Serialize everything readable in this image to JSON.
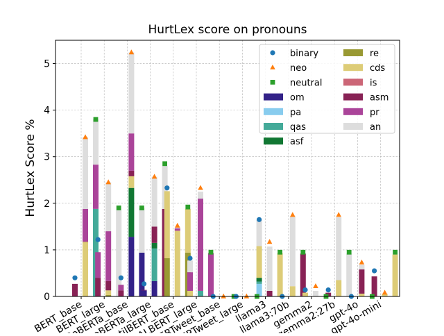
{
  "chart_data": {
    "type": "bar",
    "title": "HurtLex score on pronouns",
    "xlabel": "",
    "ylabel": "HurtLex Score %",
    "ylim": [
      0,
      5.5
    ],
    "yticks": [
      0,
      1,
      2,
      3,
      4,
      5
    ],
    "grid": true,
    "legend_placement": "top-right",
    "models": [
      "BERT_base",
      "BERT_large",
      "RoBERTa_base",
      "RoBERTa_large",
      "DistilBERT_base",
      "ALBERT_large",
      "BERTweet_base",
      "BERTweet_large",
      "llama3",
      "llama3:70b",
      "gemma2",
      "gemma2:27b",
      "gpt-4o",
      "gpt-4o-mini"
    ],
    "tick_labels": [
      "BERT_base",
      "BERT_large",
      "RoBERTa_base",
      "RoBERTa_large",
      "DistilBERT_base",
      "ALBERT_large",
      "BERTweet_base",
      "BERTweet_large",
      "llama3",
      "llama3:70b",
      "gemma2",
      "gemma2:27b",
      "gpt-4o",
      "gpt-4o-mini"
    ],
    "group_order": [
      "binary",
      "neo",
      "neutral"
    ],
    "markers": [
      {
        "name": "binary",
        "shape": "circle",
        "color": "#1f77b4"
      },
      {
        "name": "neo",
        "shape": "triangle",
        "color": "#ff7f0e"
      },
      {
        "name": "neutral",
        "shape": "square",
        "color": "#2ca02c"
      }
    ],
    "categories": [
      {
        "name": "om",
        "color": "#332288"
      },
      {
        "name": "pa",
        "color": "#88ccee"
      },
      {
        "name": "qas",
        "color": "#44aa99"
      },
      {
        "name": "asf",
        "color": "#117733"
      },
      {
        "name": "re",
        "color": "#999933"
      },
      {
        "name": "cds",
        "color": "#ddcc77"
      },
      {
        "name": "is",
        "color": "#cc6677"
      },
      {
        "name": "asm",
        "color": "#882255"
      },
      {
        "name": "pr",
        "color": "#aa4499"
      },
      {
        "name": "an",
        "color": "#dddddd"
      }
    ],
    "series": [
      {
        "model": "BERT_base",
        "group": "binary",
        "total": 0.4,
        "segments": {
          "asm": 0.27
        }
      },
      {
        "model": "BERT_base",
        "group": "neo",
        "total": 3.42,
        "segments": {
          "cds": 1.17,
          "asm": 0.01,
          "pr": 0.7,
          "an": 1.54
        }
      },
      {
        "model": "BERT_base",
        "group": "neutral",
        "total": 3.8,
        "segments": {
          "qas": 1.88,
          "pr": 0.95,
          "an": 0.97
        }
      },
      {
        "model": "BERT_large",
        "group": "binary",
        "total": 1.22,
        "segments": {
          "asm": 0.4,
          "pr": 0.55
        }
      },
      {
        "model": "BERT_large",
        "group": "neo",
        "total": 2.45,
        "segments": {
          "re": 0.03,
          "cds": 0.1,
          "asm": 0.2,
          "pr": 1.07,
          "an": 1.05
        }
      },
      {
        "model": "BERT_large",
        "group": "neutral",
        "total": 1.9,
        "segments": {
          "an": 1.85
        }
      },
      {
        "model": "RoBERTa_base",
        "group": "binary",
        "total": 0.4,
        "segments": {
          "asm": 0.13,
          "pr": 0.12
        }
      },
      {
        "model": "RoBERTa_base",
        "group": "neo",
        "total": 5.24,
        "segments": {
          "om": 1.28,
          "asf": 1.05,
          "cds": 0.25,
          "asm": 0.12,
          "pr": 0.8,
          "an": 1.74
        }
      },
      {
        "model": "RoBERTa_base",
        "group": "neutral",
        "total": 1.9,
        "segments": {
          "om": 0.94,
          "an": 0.96
        }
      },
      {
        "model": "RoBERTa_large",
        "group": "binary",
        "total": 0.27,
        "segments": {
          "om": 0.13,
          "asm": 0.01
        }
      },
      {
        "model": "RoBERTa_large",
        "group": "neo",
        "total": 2.57,
        "segments": {
          "om": 0.33,
          "qas": 0.7,
          "asf": 0.12,
          "asm": 0.35,
          "an": 1.07
        }
      },
      {
        "model": "RoBERTa_large",
        "group": "neutral",
        "total": 2.85,
        "segments": {
          "asm": 1.88,
          "an": 0.92
        }
      },
      {
        "model": "DistilBERT_base",
        "group": "binary",
        "total": 2.33,
        "segments": {
          "re": 0.82,
          "cds": 1.44
        }
      },
      {
        "model": "DistilBERT_base",
        "group": "neo",
        "total": 1.52,
        "segments": {
          "re": 0.01,
          "cds": 1.4,
          "pr": 0.05,
          "an": 0.02
        }
      },
      {
        "model": "DistilBERT_base",
        "group": "neutral",
        "total": 1.92,
        "segments": {
          "re": 0.94,
          "cds": 0.94
        }
      },
      {
        "model": "ALBERT_large",
        "group": "binary",
        "total": 0.82,
        "segments": {
          "cds": 0.12,
          "pr": 0.4,
          "an": 0.25
        }
      },
      {
        "model": "ALBERT_large",
        "group": "neo",
        "total": 2.33,
        "segments": {
          "qas": 0.12,
          "pr": 1.98,
          "an": 0.15
        }
      },
      {
        "model": "ALBERT_large",
        "group": "neutral",
        "total": 0.95,
        "segments": {
          "pr": 0.93
        }
      },
      {
        "model": "BERTweet_base",
        "group": "binary",
        "total": 0.0,
        "segments": {}
      },
      {
        "model": "BERTweet_base",
        "group": "neo",
        "total": 0.0,
        "segments": {}
      },
      {
        "model": "BERTweet_base",
        "group": "neutral",
        "total": 0.0,
        "segments": {}
      },
      {
        "model": "BERTweet_large",
        "group": "binary",
        "total": 0.0,
        "segments": {}
      },
      {
        "model": "BERTweet_large",
        "group": "neo",
        "total": 0.0,
        "segments": {}
      },
      {
        "model": "BERTweet_large",
        "group": "neutral",
        "total": 0.0,
        "segments": {}
      },
      {
        "model": "llama3",
        "group": "binary",
        "total": 1.65,
        "segments": {
          "pa": 0.27,
          "qas": 0.05,
          "asf": 0.08,
          "cds": 0.68,
          "an": 0.56
        }
      },
      {
        "model": "llama3",
        "group": "neo",
        "total": 1.17,
        "segments": {
          "asm": 0.12,
          "an": 0.95
        }
      },
      {
        "model": "llama3",
        "group": "neutral",
        "total": 0.95,
        "segments": {
          "cds": 0.93
        }
      },
      {
        "model": "llama3:70b",
        "group": "binary",
        "total": 0.0,
        "segments": {}
      },
      {
        "model": "llama3:70b",
        "group": "neo",
        "total": 1.75,
        "segments": {
          "cds": 0.22,
          "an": 1.5
        }
      },
      {
        "model": "llama3:70b",
        "group": "neutral",
        "total": 0.95,
        "segments": {
          "asm": 0.92
        }
      },
      {
        "model": "gemma2",
        "group": "binary",
        "total": 0.14,
        "segments": {
          "cds": 0.08
        }
      },
      {
        "model": "gemma2",
        "group": "neo",
        "total": 0.22,
        "segments": {
          "an": 0.12
        }
      },
      {
        "model": "gemma2",
        "group": "neutral",
        "total": 0.0,
        "segments": {}
      },
      {
        "model": "gemma2:27b",
        "group": "binary",
        "total": 0.14,
        "segments": {
          "asm": 0.08
        }
      },
      {
        "model": "gemma2:27b",
        "group": "neo",
        "total": 1.75,
        "segments": {
          "cds": 0.35,
          "an": 1.35
        }
      },
      {
        "model": "gemma2:27b",
        "group": "neutral",
        "total": 0.95,
        "segments": {
          "an": 0.92
        }
      },
      {
        "model": "gpt-4o",
        "group": "binary",
        "total": 0.0,
        "segments": {}
      },
      {
        "model": "gpt-4o",
        "group": "neo",
        "total": 0.73,
        "segments": {
          "cds": 0.06,
          "asm": 0.52,
          "an": 0.1
        }
      },
      {
        "model": "gpt-4o",
        "group": "neutral",
        "total": 0.0,
        "segments": {}
      },
      {
        "model": "gpt-4o-mini",
        "group": "binary",
        "total": 0.55,
        "segments": {
          "asm": 0.43
        }
      },
      {
        "model": "gpt-4o-mini",
        "group": "neo",
        "total": 0.08,
        "segments": {
          "cds": 0.06
        }
      },
      {
        "model": "gpt-4o-mini",
        "group": "neutral",
        "total": 0.95,
        "segments": {
          "cds": 0.9
        }
      }
    ]
  }
}
